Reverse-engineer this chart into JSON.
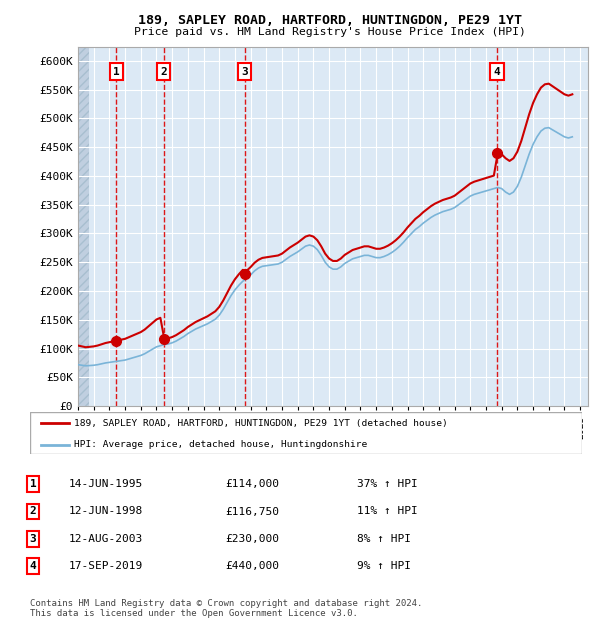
{
  "title": "189, SAPLEY ROAD, HARTFORD, HUNTINGDON, PE29 1YT",
  "subtitle": "Price paid vs. HM Land Registry's House Price Index (HPI)",
  "ylim": [
    0,
    625000
  ],
  "yticks": [
    0,
    50000,
    100000,
    150000,
    200000,
    250000,
    300000,
    350000,
    400000,
    450000,
    500000,
    550000,
    600000
  ],
  "ytick_labels": [
    "£0",
    "£50K",
    "£100K",
    "£150K",
    "£200K",
    "£250K",
    "£300K",
    "£350K",
    "£400K",
    "£450K",
    "£500K",
    "£550K",
    "£600K"
  ],
  "xlim_start": 1993.0,
  "xlim_end": 2025.5,
  "background_color": "#ffffff",
  "plot_bg_color": "#dce9f5",
  "hatch_color": "#c0cfe0",
  "grid_color": "#ffffff",
  "sale_dates": [
    1995.45,
    1998.45,
    2003.62,
    2019.71
  ],
  "sale_prices": [
    114000,
    116750,
    230000,
    440000
  ],
  "sale_labels": [
    "1",
    "2",
    "3",
    "4"
  ],
  "hpi_line_color": "#7ab4d8",
  "sale_line_color": "#cc0000",
  "sale_dot_color": "#cc0000",
  "dashed_line_color": "#dd0000",
  "legend_label_sale": "189, SAPLEY ROAD, HARTFORD, HUNTINGDON, PE29 1YT (detached house)",
  "legend_label_hpi": "HPI: Average price, detached house, Huntingdonshire",
  "table_rows": [
    [
      "1",
      "14-JUN-1995",
      "£114,000",
      "37% ↑ HPI"
    ],
    [
      "2",
      "12-JUN-1998",
      "£116,750",
      "11% ↑ HPI"
    ],
    [
      "3",
      "12-AUG-2003",
      "£230,000",
      "8% ↑ HPI"
    ],
    [
      "4",
      "17-SEP-2019",
      "£440,000",
      "9% ↑ HPI"
    ]
  ],
  "footnote": "Contains HM Land Registry data © Crown copyright and database right 2024.\nThis data is licensed under the Open Government Licence v3.0.",
  "hpi_data": {
    "years": [
      1993.0,
      1993.25,
      1993.5,
      1993.75,
      1994.0,
      1994.25,
      1994.5,
      1994.75,
      1995.0,
      1995.25,
      1995.5,
      1995.75,
      1996.0,
      1996.25,
      1996.5,
      1996.75,
      1997.0,
      1997.25,
      1997.5,
      1997.75,
      1998.0,
      1998.25,
      1998.5,
      1998.75,
      1999.0,
      1999.25,
      1999.5,
      1999.75,
      2000.0,
      2000.25,
      2000.5,
      2000.75,
      2001.0,
      2001.25,
      2001.5,
      2001.75,
      2002.0,
      2002.25,
      2002.5,
      2002.75,
      2003.0,
      2003.25,
      2003.5,
      2003.75,
      2004.0,
      2004.25,
      2004.5,
      2004.75,
      2005.0,
      2005.25,
      2005.5,
      2005.75,
      2006.0,
      2006.25,
      2006.5,
      2006.75,
      2007.0,
      2007.25,
      2007.5,
      2007.75,
      2008.0,
      2008.25,
      2008.5,
      2008.75,
      2009.0,
      2009.25,
      2009.5,
      2009.75,
      2010.0,
      2010.25,
      2010.5,
      2010.75,
      2011.0,
      2011.25,
      2011.5,
      2011.75,
      2012.0,
      2012.25,
      2012.5,
      2012.75,
      2013.0,
      2013.25,
      2013.5,
      2013.75,
      2014.0,
      2014.25,
      2014.5,
      2014.75,
      2015.0,
      2015.25,
      2015.5,
      2015.75,
      2016.0,
      2016.25,
      2016.5,
      2016.75,
      2017.0,
      2017.25,
      2017.5,
      2017.75,
      2018.0,
      2018.25,
      2018.5,
      2018.75,
      2019.0,
      2019.25,
      2019.5,
      2019.75,
      2020.0,
      2020.25,
      2020.5,
      2020.75,
      2021.0,
      2021.25,
      2021.5,
      2021.75,
      2022.0,
      2022.25,
      2022.5,
      2022.75,
      2023.0,
      2023.25,
      2023.5,
      2023.75,
      2024.0,
      2024.25,
      2024.5
    ],
    "values": [
      72000,
      71000,
      70000,
      70500,
      71000,
      72000,
      73500,
      75000,
      76000,
      77000,
      78000,
      79000,
      80000,
      82000,
      84000,
      86000,
      88000,
      91000,
      95000,
      99000,
      103000,
      105000,
      107000,
      108000,
      110000,
      113000,
      117000,
      121000,
      126000,
      130000,
      134000,
      137000,
      140000,
      143000,
      147000,
      151000,
      158000,
      168000,
      180000,
      192000,
      202000,
      210000,
      217000,
      222000,
      228000,
      235000,
      240000,
      243000,
      244000,
      245000,
      246000,
      247000,
      250000,
      255000,
      260000,
      264000,
      268000,
      273000,
      278000,
      280000,
      278000,
      272000,
      262000,
      250000,
      242000,
      238000,
      238000,
      242000,
      248000,
      252000,
      256000,
      258000,
      260000,
      262000,
      262000,
      260000,
      258000,
      258000,
      260000,
      263000,
      267000,
      272000,
      278000,
      285000,
      293000,
      300000,
      307000,
      312000,
      318000,
      323000,
      328000,
      332000,
      335000,
      338000,
      340000,
      342000,
      345000,
      350000,
      355000,
      360000,
      365000,
      368000,
      370000,
      372000,
      374000,
      376000,
      378000,
      380000,
      378000,
      372000,
      368000,
      372000,
      382000,
      398000,
      418000,
      438000,
      455000,
      468000,
      478000,
      483000,
      484000,
      480000,
      476000,
      472000,
      468000,
      466000,
      468000
    ]
  }
}
